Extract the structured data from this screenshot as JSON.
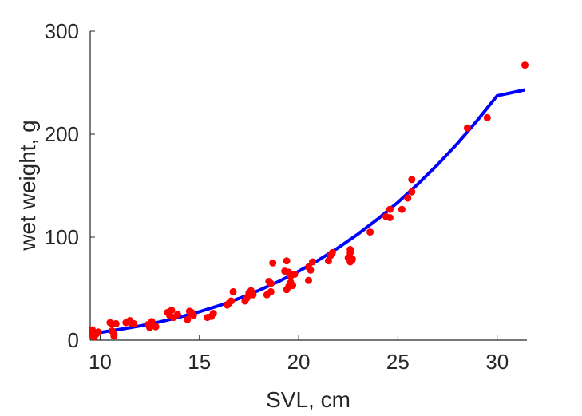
{
  "chart_data": {
    "type": "scatter",
    "xlabel": "SVL, cm",
    "ylabel": "wet weight, g",
    "xlim": [
      9.5,
      31.5
    ],
    "ylim": [
      0,
      300
    ],
    "xticks": [
      10,
      15,
      20,
      25,
      30
    ],
    "yticks": [
      0,
      100,
      200,
      300
    ],
    "xtick_labels": [
      "10",
      "15",
      "20",
      "25",
      "30"
    ],
    "ytick_labels": [
      "0",
      "100",
      "200",
      "300"
    ],
    "grid": false,
    "legend": "none",
    "colors": {
      "points": "#ff0000",
      "fit": "#0000ff",
      "axis": "#262626"
    },
    "series": [
      {
        "kind": "points",
        "x": [
          9.6,
          9.6,
          9.7,
          9.8,
          9.9,
          9.6,
          10.5,
          10.6,
          10.7,
          10.8,
          10.6,
          10.7,
          11.3,
          11.5,
          11.7,
          11.6,
          12.4,
          12.6,
          12.8,
          12.5,
          13.4,
          13.5,
          13.7,
          13.6,
          13.9,
          14.4,
          14.5,
          14.7,
          14.6,
          14.6,
          15.4,
          15.6,
          15.7,
          16.4,
          16.5,
          16.6,
          16.7,
          17.3,
          17.4,
          17.5,
          17.7,
          17.6,
          18.4,
          18.6,
          18.5,
          18.7,
          18.6,
          19.3,
          19.4,
          19.5,
          19.5,
          19.6,
          19.7,
          19.8,
          19.6,
          19.4,
          20.5,
          20.6,
          20.7,
          20.5,
          21.5,
          21.6,
          21.7,
          22.5,
          22.6,
          22.7,
          22.6,
          22.6,
          22.7,
          23.6,
          24.4,
          24.6,
          24.6,
          25.2,
          25.5,
          25.7,
          25.7,
          28.5,
          29.5,
          31.4
        ],
        "y": [
          5,
          8,
          3,
          6,
          8,
          10,
          17,
          9,
          4,
          16,
          16,
          6,
          17,
          19,
          16,
          16,
          15,
          18,
          13,
          12,
          27,
          24,
          22,
          29,
          25,
          20,
          28,
          24,
          27,
          25,
          22,
          23,
          26,
          34,
          36,
          38,
          47,
          38,
          41,
          46,
          44,
          48,
          44,
          55,
          57,
          75,
          47,
          67,
          49,
          52,
          66,
          56,
          53,
          64,
          62,
          77,
          58,
          68,
          76,
          71,
          77,
          82,
          85,
          80,
          76,
          79,
          88,
          85,
          78,
          105,
          120,
          127,
          119,
          127,
          138,
          144,
          156,
          206,
          216,
          267
        ]
      },
      {
        "kind": "fit-curve",
        "x": [
          9.5,
          10,
          11,
          12,
          13,
          14,
          15,
          16,
          17,
          18,
          19,
          20,
          21,
          22,
          23,
          24,
          25,
          26,
          27,
          28,
          29,
          30,
          31.4
        ],
        "y": [
          6,
          7.5,
          10.5,
          13.8,
          17.7,
          22.3,
          27.6,
          33.6,
          40.5,
          48.3,
          57,
          66.8,
          77.7,
          89.8,
          103.2,
          117.8,
          133.9,
          151.4,
          170.4,
          191,
          213.3,
          237.3,
          243
        ]
      }
    ]
  }
}
